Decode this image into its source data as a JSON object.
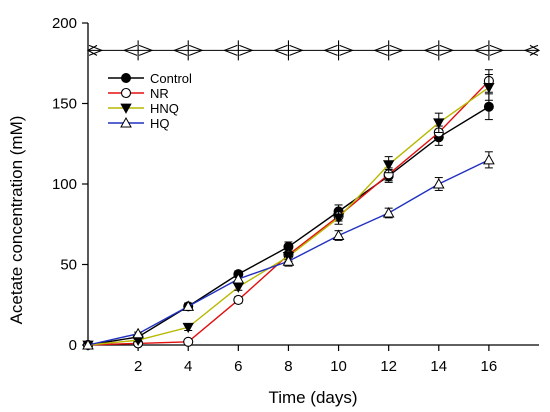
{
  "chart_data": {
    "type": "line",
    "xlabel": "Time (days)",
    "ylabel": "Acetate concentration (mM)",
    "xlim": [
      0,
      18
    ],
    "ylim": [
      0,
      200
    ],
    "x_ticks": [
      2,
      4,
      6,
      8,
      10,
      12,
      14,
      16
    ],
    "y_ticks": [
      0,
      50,
      100,
      150,
      200
    ],
    "grid": false,
    "legend_position": "top-left",
    "series": [
      {
        "name": "Control",
        "color": "#000000",
        "marker": "filled-circle",
        "x": [
          0,
          2,
          4,
          6,
          8,
          10,
          12,
          14,
          16
        ],
        "y": [
          0,
          5,
          24,
          44,
          61,
          83,
          105,
          129,
          148
        ],
        "err": [
          0,
          1,
          2,
          2,
          3,
          4,
          4,
          5,
          8
        ]
      },
      {
        "name": "NR",
        "color": "#e01010",
        "marker": "open-circle",
        "x": [
          0,
          2,
          4,
          6,
          8,
          10,
          12,
          14,
          16
        ],
        "y": [
          0,
          1,
          2,
          28,
          56,
          80,
          106,
          132,
          164
        ],
        "err": [
          0,
          1,
          1,
          2,
          3,
          3,
          4,
          4,
          7
        ]
      },
      {
        "name": "HNQ",
        "color": "#b8b800",
        "marker": "filled-triangle-down",
        "x": [
          0,
          2,
          4,
          6,
          8,
          10,
          12,
          14,
          16
        ],
        "y": [
          0,
          3,
          11,
          36,
          55,
          79,
          112,
          138,
          160
        ],
        "err": [
          0,
          1,
          2,
          2,
          3,
          4,
          5,
          6,
          8
        ]
      },
      {
        "name": "HQ",
        "color": "#2030c0",
        "marker": "open-triangle-up",
        "x": [
          0,
          2,
          4,
          6,
          8,
          10,
          12,
          14,
          16
        ],
        "y": [
          0,
          7,
          24,
          41,
          52,
          68,
          82,
          100,
          115
        ],
        "err": [
          0,
          1,
          2,
          2,
          3,
          3,
          3,
          4,
          5
        ]
      }
    ],
    "reference_line": {
      "y": 183,
      "marker_x": [
        0,
        2,
        4,
        6,
        8,
        10,
        12,
        14,
        16,
        18
      ]
    }
  }
}
